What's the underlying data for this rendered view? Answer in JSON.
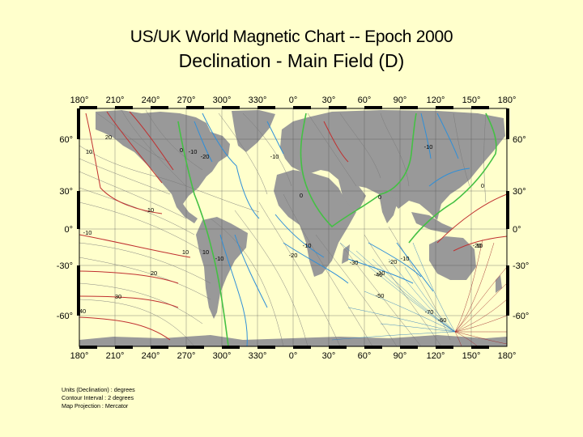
{
  "header": {
    "title": "US/UK World Magnetic Chart  --  Epoch 2000",
    "subtitle": "Declination - Main Field (D)"
  },
  "map": {
    "projection_note": "Mercator",
    "longitude_ticks": [
      "180°",
      "210°",
      "240°",
      "270°",
      "300°",
      "330°",
      "0°",
      "30°",
      "60°",
      "90°",
      "120°",
      "150°",
      "180°"
    ],
    "latitude_ticks": [
      "60°",
      "30°",
      "0°",
      "-30°",
      "-60°"
    ],
    "contour_labels": [
      {
        "text": "20"
      },
      {
        "text": "10"
      },
      {
        "text": "0"
      },
      {
        "text": "-10"
      },
      {
        "text": "-20"
      },
      {
        "text": "-10"
      },
      {
        "text": "-10"
      },
      {
        "text": "0"
      },
      {
        "text": "10"
      },
      {
        "text": "0"
      },
      {
        "text": "-10"
      },
      {
        "text": "10"
      },
      {
        "text": "-10"
      },
      {
        "text": "10"
      },
      {
        "text": "0"
      },
      {
        "text": "-10"
      },
      {
        "text": "-20"
      },
      {
        "text": "-10"
      },
      {
        "text": "-20"
      },
      {
        "text": "-30"
      },
      {
        "text": "-20"
      },
      {
        "text": "-10"
      },
      {
        "text": "-40"
      },
      {
        "text": "-50"
      },
      {
        "text": "20"
      },
      {
        "text": "30"
      },
      {
        "text": "40"
      },
      {
        "text": "-70"
      },
      {
        "text": "-60"
      },
      {
        "text": "10"
      }
    ],
    "colors": {
      "background": "#ffffcc",
      "land": "#999999",
      "positive_contour": "#c03030",
      "negative_contour": "#2f8fd8",
      "zero_contour": "#44c044",
      "minor_contour": "#777777"
    }
  },
  "legend": {
    "units": "Units (Declination) : degrees",
    "interval": "Contour Interval : 2 degrees",
    "projection": "Map Projection : Mercator"
  }
}
